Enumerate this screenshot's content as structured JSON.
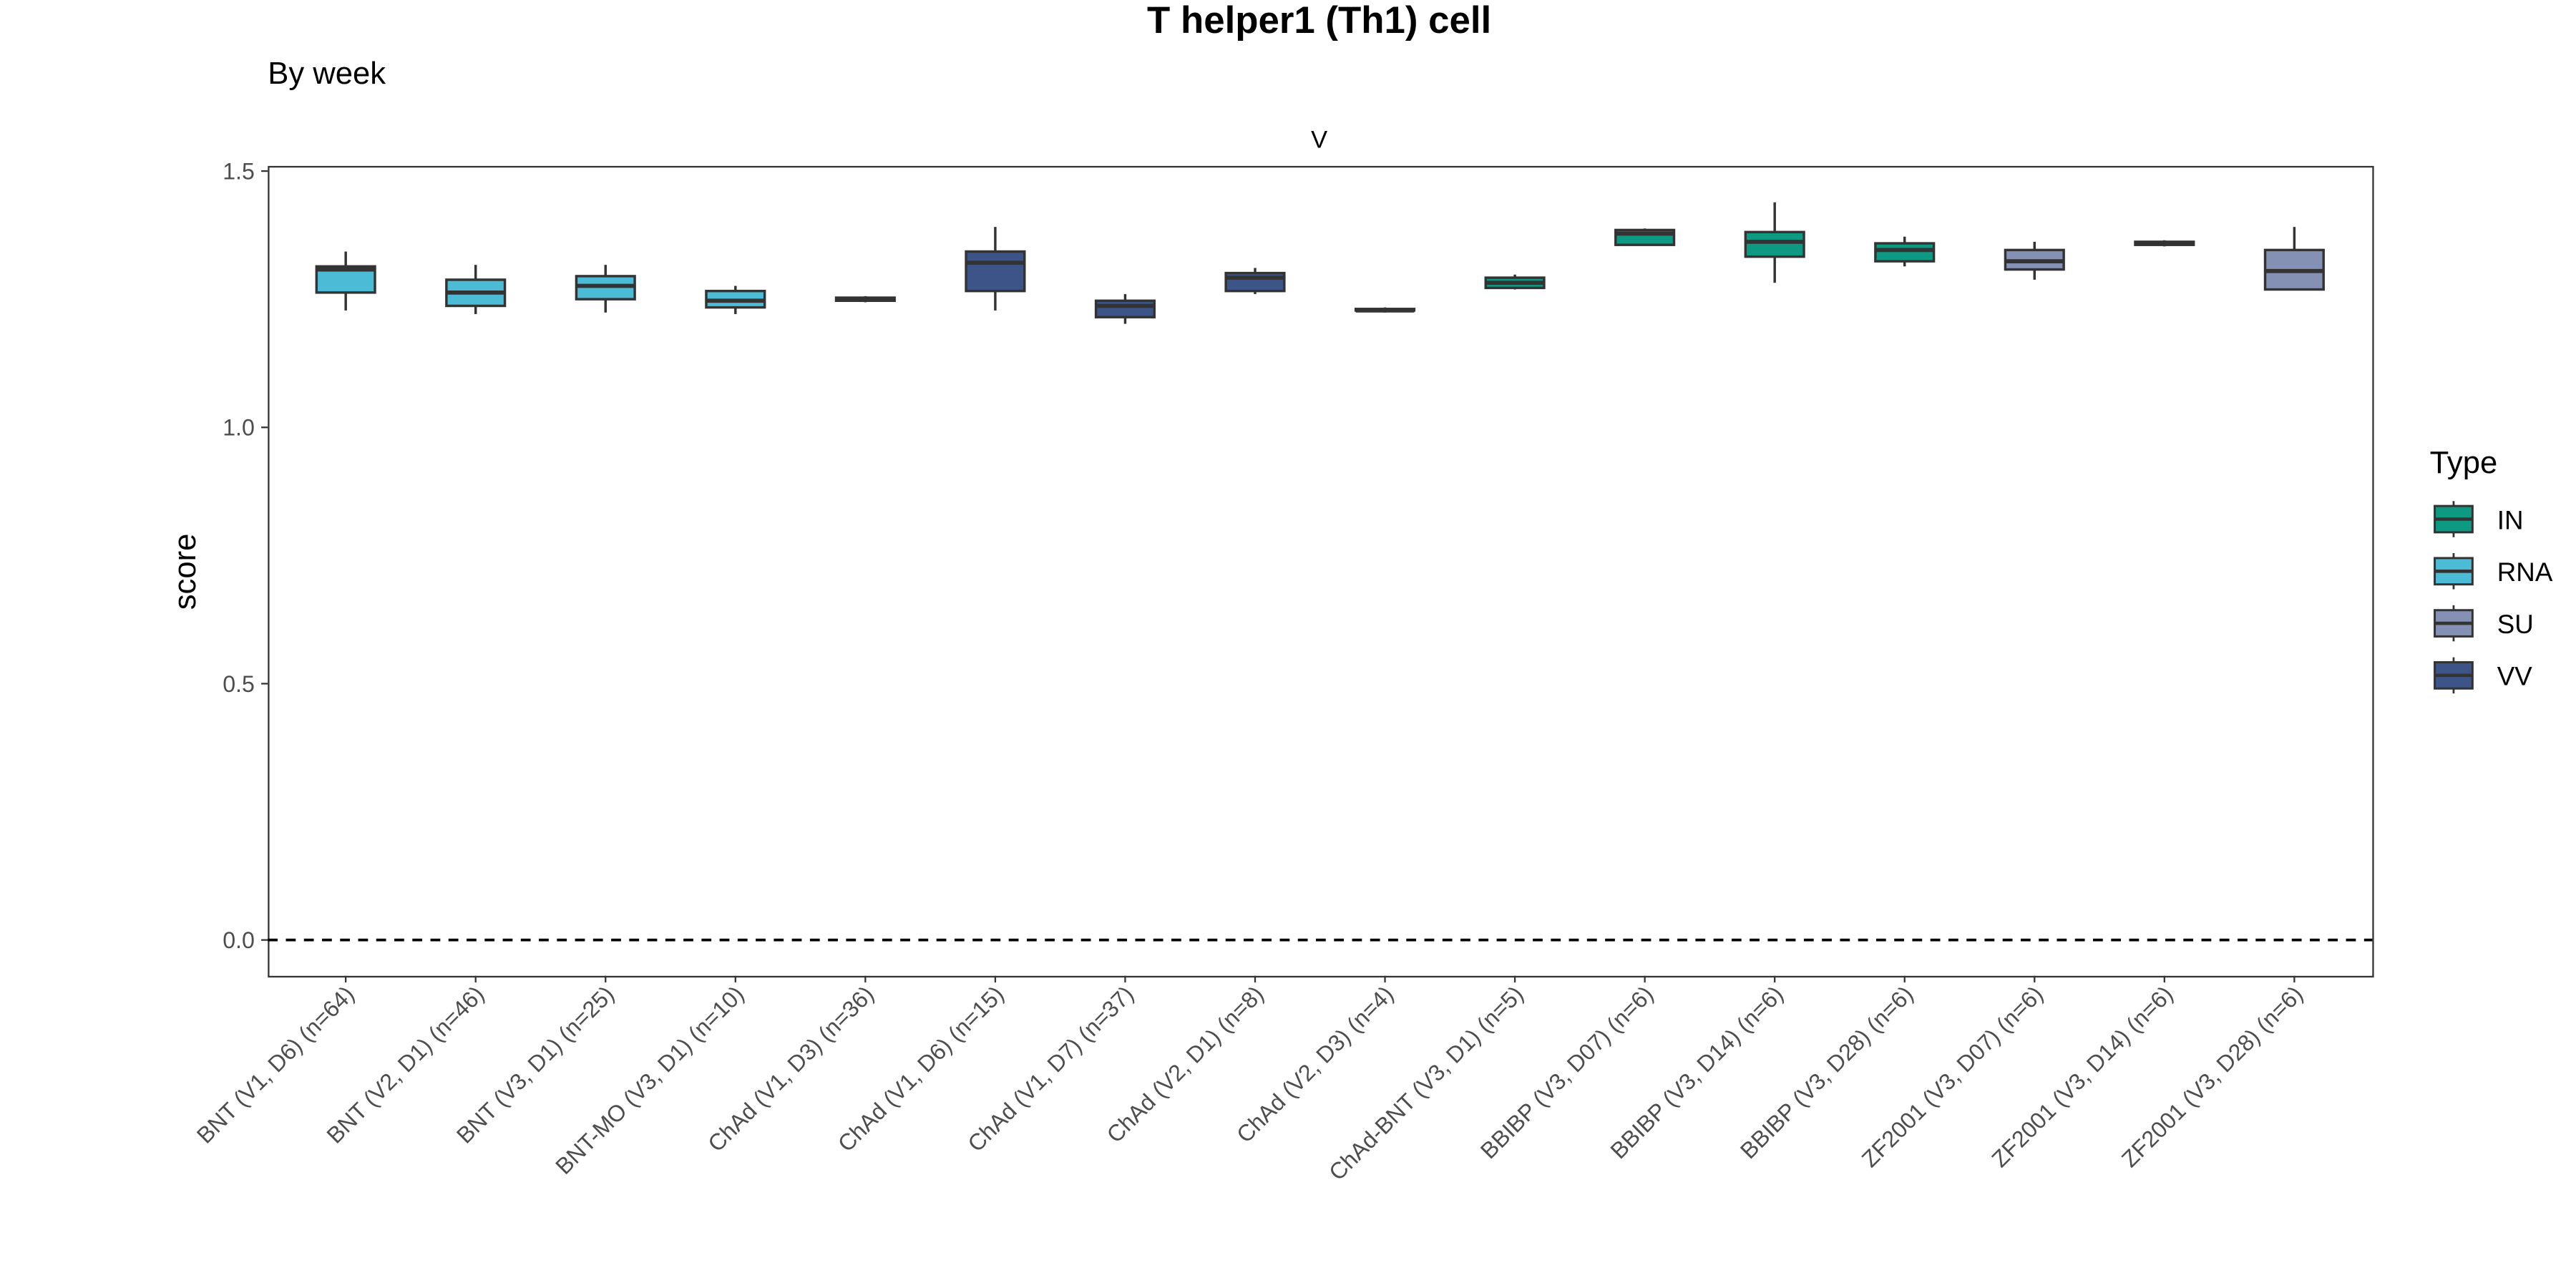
{
  "chart_data": {
    "type": "box",
    "title": "T helper1 (Th1) cell",
    "subtitle": "By week",
    "facet_label": "V",
    "y_label": "score",
    "legend_title": "Type",
    "categories": [
      "BNT (V1, D6) (n=64)",
      "BNT (V2, D1) (n=46)",
      "BNT (V3, D1) (n=25)",
      "BNT-MO (V3, D1) (n=10)",
      "ChAd (V1, D3) (n=36)",
      "ChAd (V1, D6) (n=15)",
      "ChAd (V1, D7) (n=37)",
      "ChAd (V2, D1) (n=8)",
      "ChAd (V2, D3) (n=4)",
      "ChAd-BNT (V3, D1) (n=5)",
      "BBIBP (V3, D07) (n=6)",
      "BBIBP (V3, D14) (n=6)",
      "BBIBP (V3, D28) (n=6)",
      "ZF2001 (V3, D07) (n=6)",
      "ZF2001 (V3, D14) (n=6)",
      "ZF2001 (V3, D28) (n=6)"
    ],
    "category_types": [
      "RNA",
      "RNA",
      "RNA",
      "RNA",
      "RNA",
      "VV",
      "VV",
      "VV",
      "VV",
      "IN",
      "IN",
      "IN",
      "IN",
      "SU",
      "SU",
      "SU"
    ],
    "min": [
      1.228,
      1.221,
      1.224,
      1.221,
      1.244,
      1.228,
      1.202,
      1.26,
      1.224,
      1.269,
      1.356,
      1.282,
      1.314,
      1.288,
      1.353,
      1.269
    ],
    "q1": [
      1.263,
      1.237,
      1.25,
      1.234,
      1.247,
      1.266,
      1.215,
      1.266,
      1.228,
      1.272,
      1.356,
      1.333,
      1.324,
      1.308,
      1.356,
      1.269
    ],
    "median": [
      1.308,
      1.263,
      1.276,
      1.247,
      1.25,
      1.321,
      1.237,
      1.292,
      1.228,
      1.282,
      1.378,
      1.362,
      1.346,
      1.324,
      1.359,
      1.305
    ],
    "q3": [
      1.314,
      1.288,
      1.295,
      1.266,
      1.253,
      1.343,
      1.247,
      1.301,
      1.231,
      1.292,
      1.385,
      1.381,
      1.359,
      1.346,
      1.362,
      1.346
    ],
    "max": [
      1.343,
      1.317,
      1.317,
      1.276,
      1.256,
      1.391,
      1.26,
      1.311,
      1.234,
      1.298,
      1.388,
      1.439,
      1.372,
      1.362,
      1.365,
      1.391
    ],
    "series": [
      {
        "name": "IN",
        "color": "#0e9a82"
      },
      {
        "name": "RNA",
        "color": "#4cbbd5"
      },
      {
        "name": "SU",
        "color": "#8491b4"
      },
      {
        "name": "VV",
        "color": "#3c5488"
      }
    ],
    "ylim": [
      -0.07,
      1.51
    ],
    "yticks": [
      {
        "value": 0,
        "label": "0.0"
      },
      0.5,
      {
        "value": 1,
        "label": "1.0"
      },
      1.5
    ],
    "reference_line": 0,
    "legend_position": "right"
  }
}
